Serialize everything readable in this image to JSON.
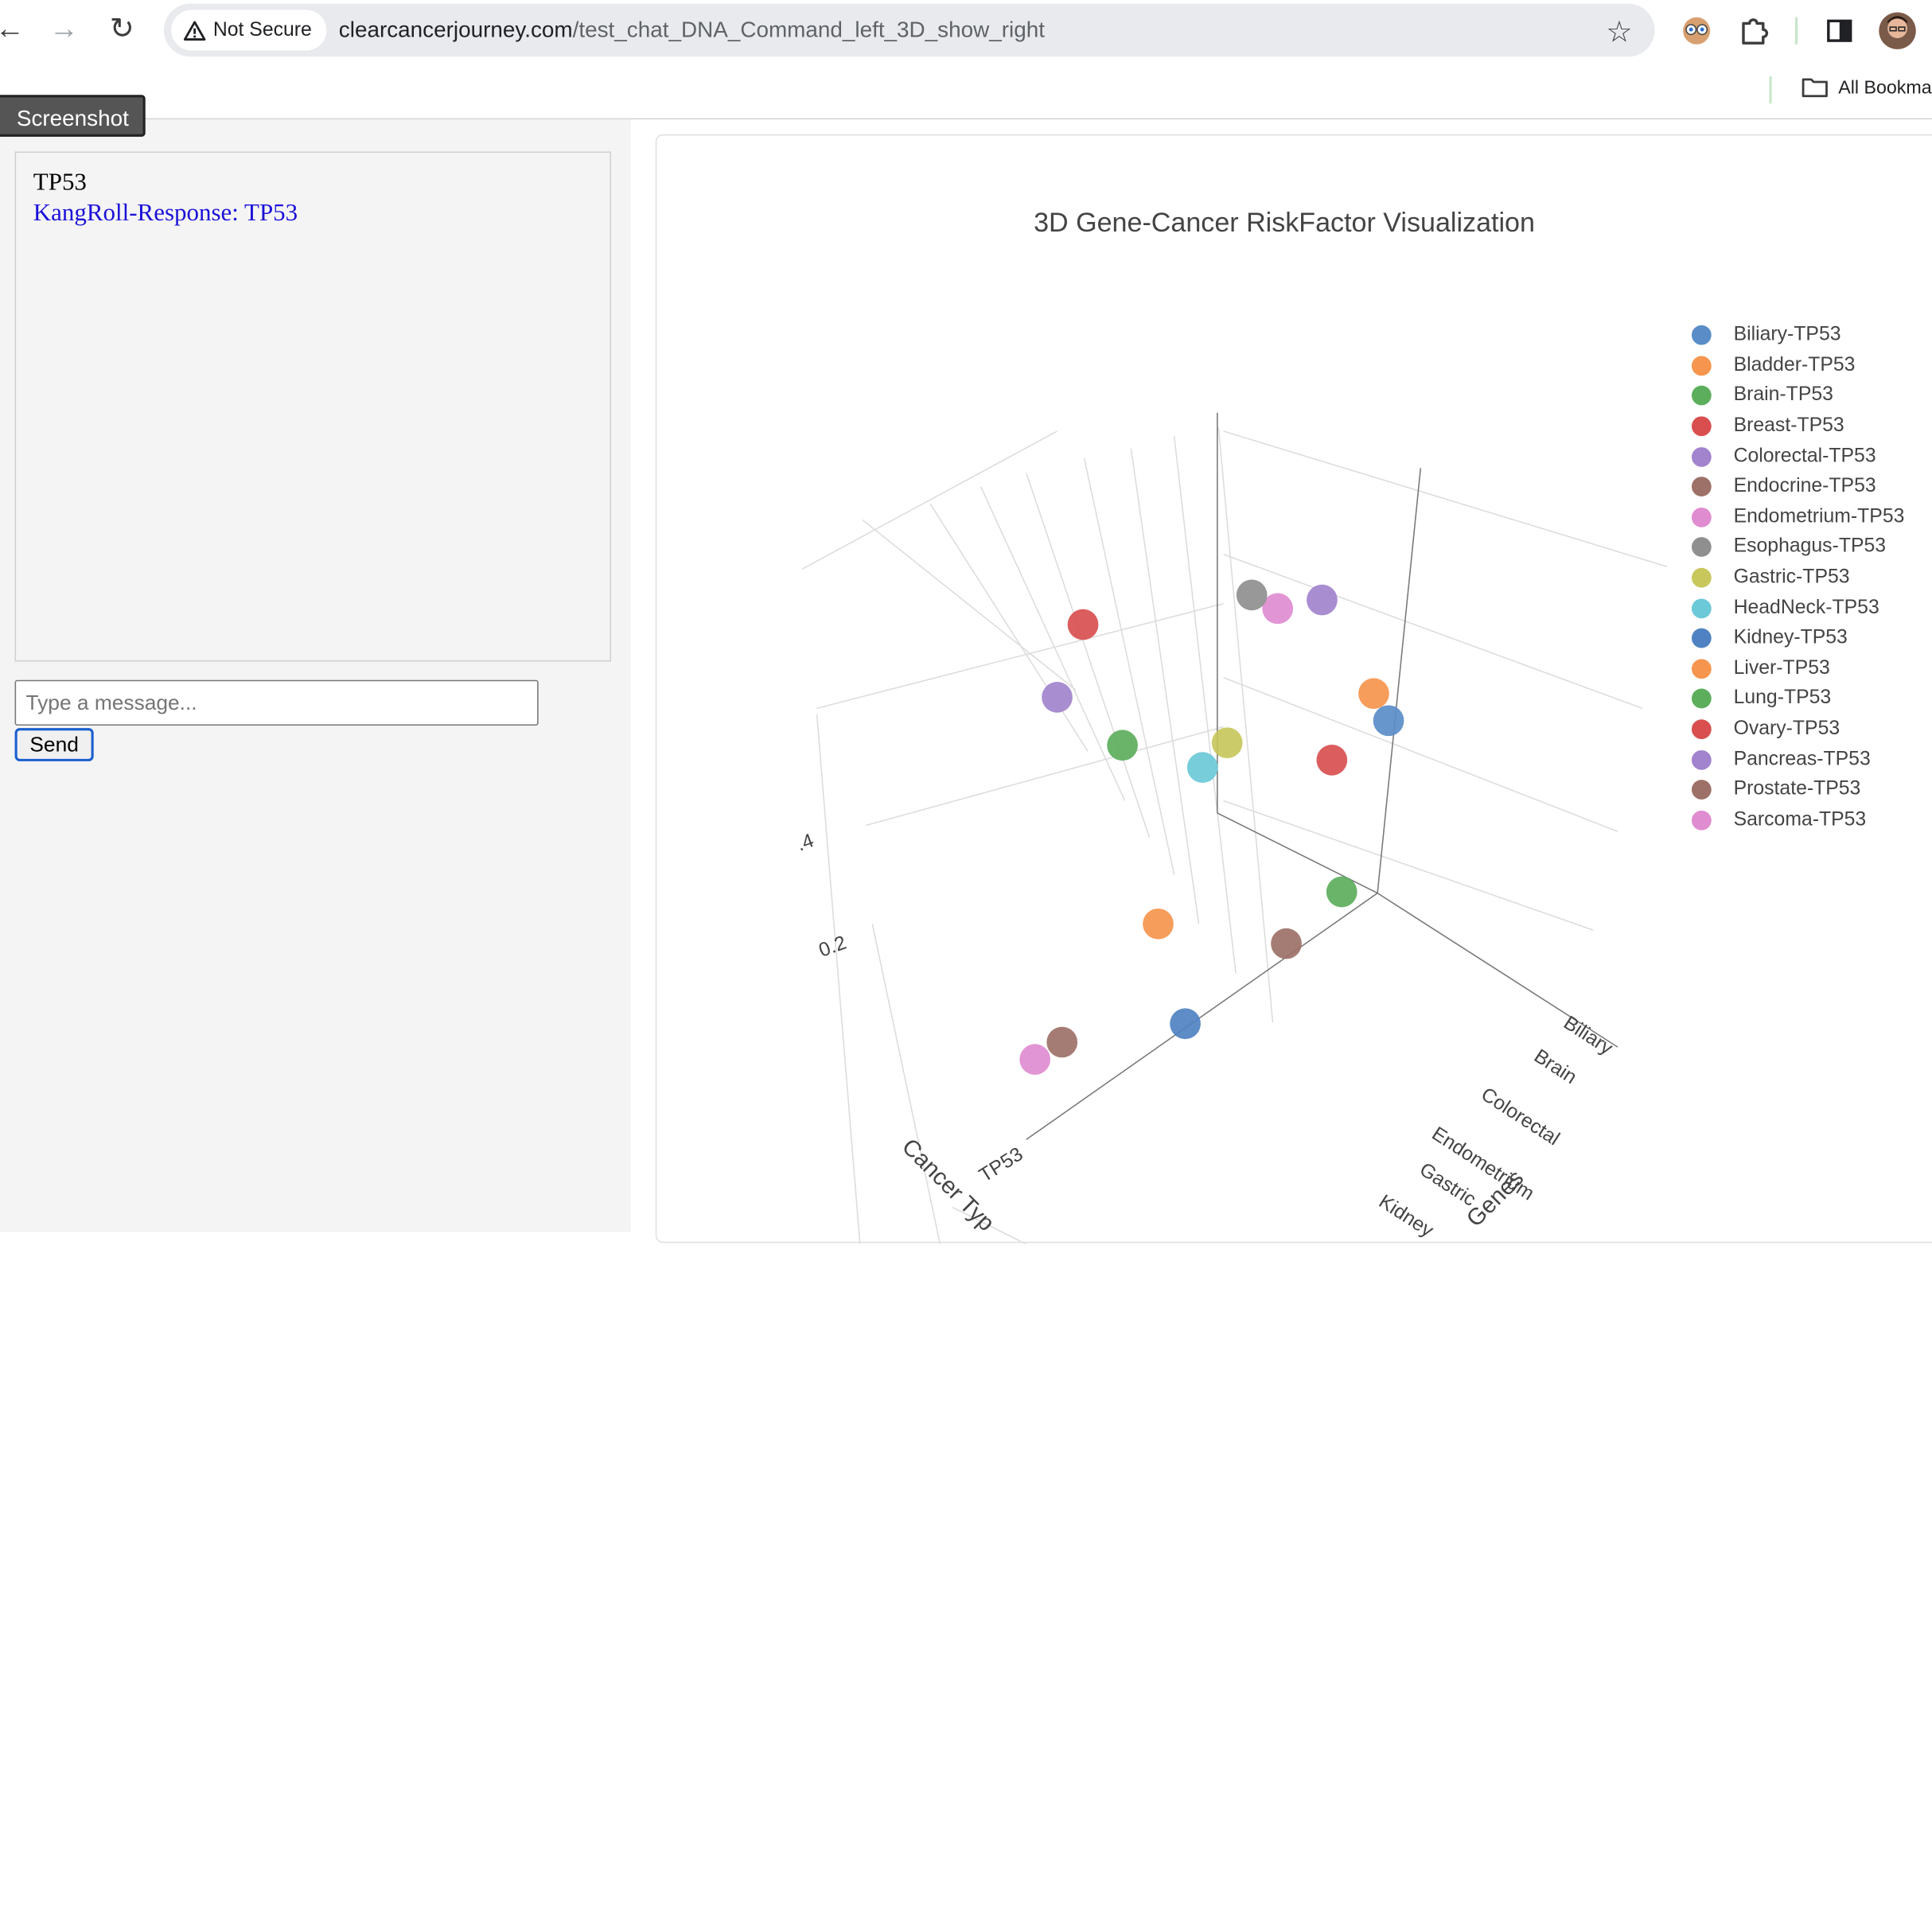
{
  "browser": {
    "security_label": "Not Secure",
    "url_domain": "clearcancerjourney.com",
    "url_path": "/test_chat_DNA_Command_left_3D_show_right",
    "bookmarks_label": "All Bookma"
  },
  "page": {
    "screenshot_button": "Screenshot",
    "chat": {
      "messages": [
        {
          "role": "user",
          "text": "TP53"
        },
        {
          "role": "bot",
          "text": "KangRoll-Response: TP53"
        }
      ],
      "input_placeholder": "Type a message...",
      "input_value": "",
      "send_label": "Send"
    }
  },
  "chart_data": {
    "type": "scatter",
    "title": "3D Gene-Cancer RiskFactor Visualization",
    "axis_titles": {
      "x": "Cancer Typ",
      "y": "Genes"
    },
    "tick_labels": {
      "x": [
        "TP53"
      ],
      "y": [
        "Biliary",
        "Brain",
        "Colorectal",
        "Endometrium",
        "Gastric",
        "Kidney"
      ],
      "z": [
        ".4",
        "0.2"
      ]
    },
    "legend_placement": "right",
    "series": [
      {
        "name": "Biliary-TP53",
        "color": "#5a8dc8"
      },
      {
        "name": "Bladder-TP53",
        "color": "#f5954e"
      },
      {
        "name": "Brain-TP53",
        "color": "#5cae5c"
      },
      {
        "name": "Breast-TP53",
        "color": "#d94f4f"
      },
      {
        "name": "Colorectal-TP53",
        "color": "#a283cd"
      },
      {
        "name": "Endocrine-TP53",
        "color": "#9d7168"
      },
      {
        "name": "Endometrium-TP53",
        "color": "#e08cd0"
      },
      {
        "name": "Esophagus-TP53",
        "color": "#8f8f8f"
      },
      {
        "name": "Gastric-TP53",
        "color": "#c8c75c"
      },
      {
        "name": "HeadNeck-TP53",
        "color": "#6cc9d8"
      },
      {
        "name": "Kidney-TP53",
        "color": "#4f82c2"
      },
      {
        "name": "Liver-TP53",
        "color": "#f5954e"
      },
      {
        "name": "Lung-TP53",
        "color": "#5cae5c"
      },
      {
        "name": "Ovary-TP53",
        "color": "#d94f4f"
      },
      {
        "name": "Pancreas-TP53",
        "color": "#a283cd"
      },
      {
        "name": "Prostate-TP53",
        "color": "#9d7168"
      },
      {
        "name": "Sarcoma-TP53",
        "color": "#e08cd0"
      }
    ]
  }
}
